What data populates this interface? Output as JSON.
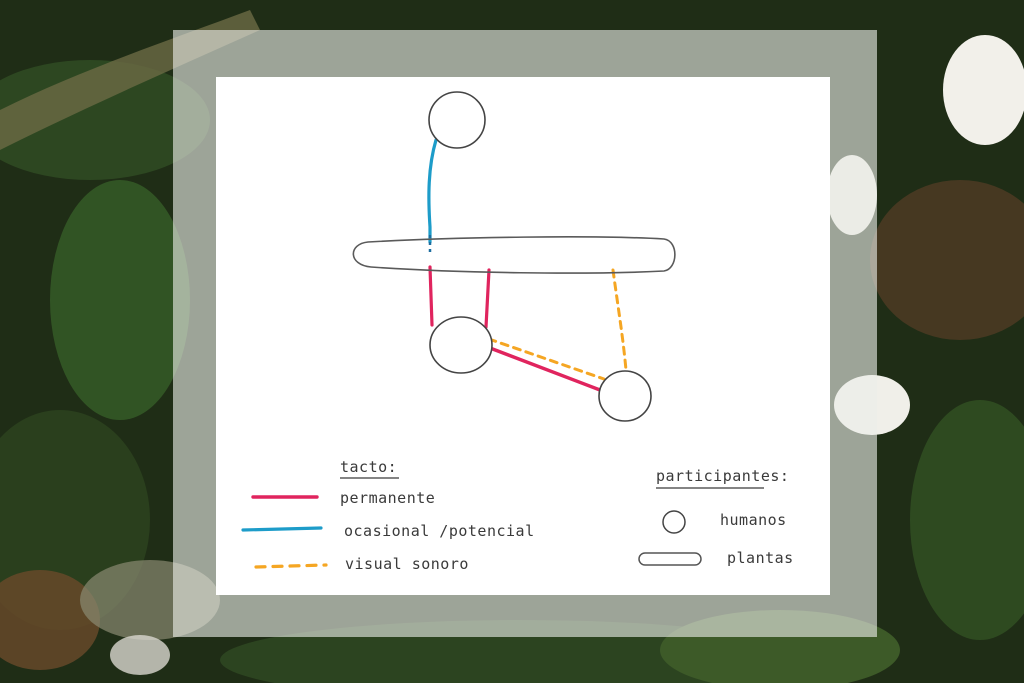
{
  "colors": {
    "permanent": "#e0245e",
    "occasional": "#1d9cc9",
    "visual_sound": "#f5a623",
    "ink": "#3a3a3a"
  },
  "legend": {
    "contact_title": "tacto:",
    "contact_items": [
      {
        "label": "permanente",
        "style": "solid-red"
      },
      {
        "label": "ocasional /potencial",
        "style": "solid-blue"
      },
      {
        "label": "visual sonoro",
        "style": "dashed-orange"
      }
    ],
    "participants_title": "participantes:",
    "participant_items": [
      {
        "label": "humanos",
        "shape": "circle"
      },
      {
        "label": "plantas",
        "shape": "capsule"
      }
    ]
  }
}
